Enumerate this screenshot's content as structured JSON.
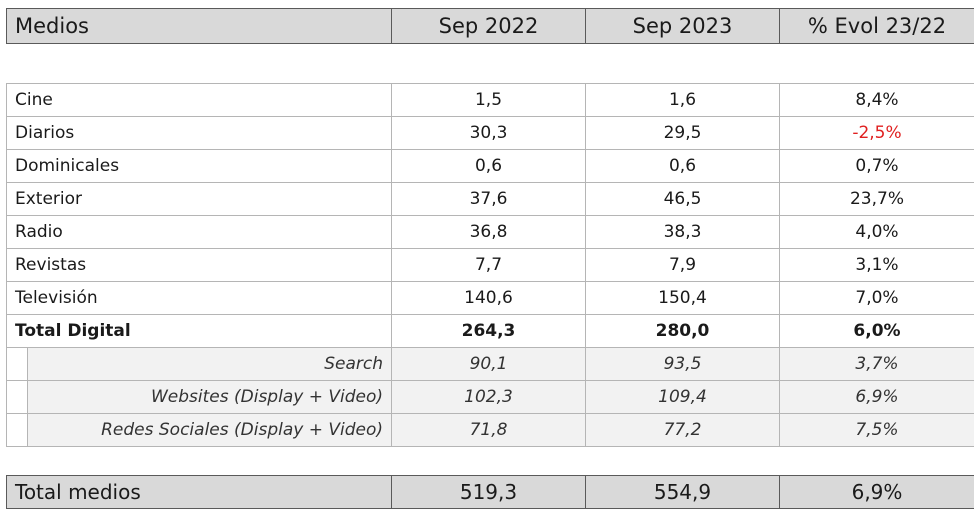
{
  "header": {
    "col_medios": "Medios",
    "col_sep2022": "Sep 2022",
    "col_sep2023": "Sep 2023",
    "col_evol": "% Evol 23/22"
  },
  "rows": [
    {
      "label": "Cine",
      "sep2022": "1,5",
      "sep2023": "1,6",
      "evol": "8,4%"
    },
    {
      "label": "Diarios",
      "sep2022": "30,3",
      "sep2023": "29,5",
      "evol": "-2,5%"
    },
    {
      "label": "Dominicales",
      "sep2022": "0,6",
      "sep2023": "0,6",
      "evol": "0,7%"
    },
    {
      "label": "Exterior",
      "sep2022": "37,6",
      "sep2023": "46,5",
      "evol": "23,7%"
    },
    {
      "label": "Radio",
      "sep2022": "36,8",
      "sep2023": "38,3",
      "evol": "4,0%"
    },
    {
      "label": "Revistas",
      "sep2022": "7,7",
      "sep2023": "7,9",
      "evol": "3,1%"
    },
    {
      "label": "Televisión",
      "sep2022": "140,6",
      "sep2023": "150,4",
      "evol": "7,0%"
    },
    {
      "label": "Total Digital",
      "sep2022": "264,3",
      "sep2023": "280,0",
      "evol": "6,0%"
    }
  ],
  "digital_sub": [
    {
      "label": "Search",
      "sep2022": "90,1",
      "sep2023": "93,5",
      "evol": "3,7%"
    },
    {
      "label": "Websites (Display + Video)",
      "sep2022": "102,3",
      "sep2023": "109,4",
      "evol": "6,9%"
    },
    {
      "label": "Redes Sociales (Display + Video)",
      "sep2022": "71,8",
      "sep2023": "77,2",
      "evol": "7,5%"
    }
  ],
  "total": {
    "label": "Total medios",
    "sep2022": "519,3",
    "sep2023": "554,9",
    "evol": "6,9%"
  },
  "colors": {
    "negative": "#e02020",
    "header_bg": "#d9d9d9",
    "sub_bg": "#f2f2f2"
  }
}
